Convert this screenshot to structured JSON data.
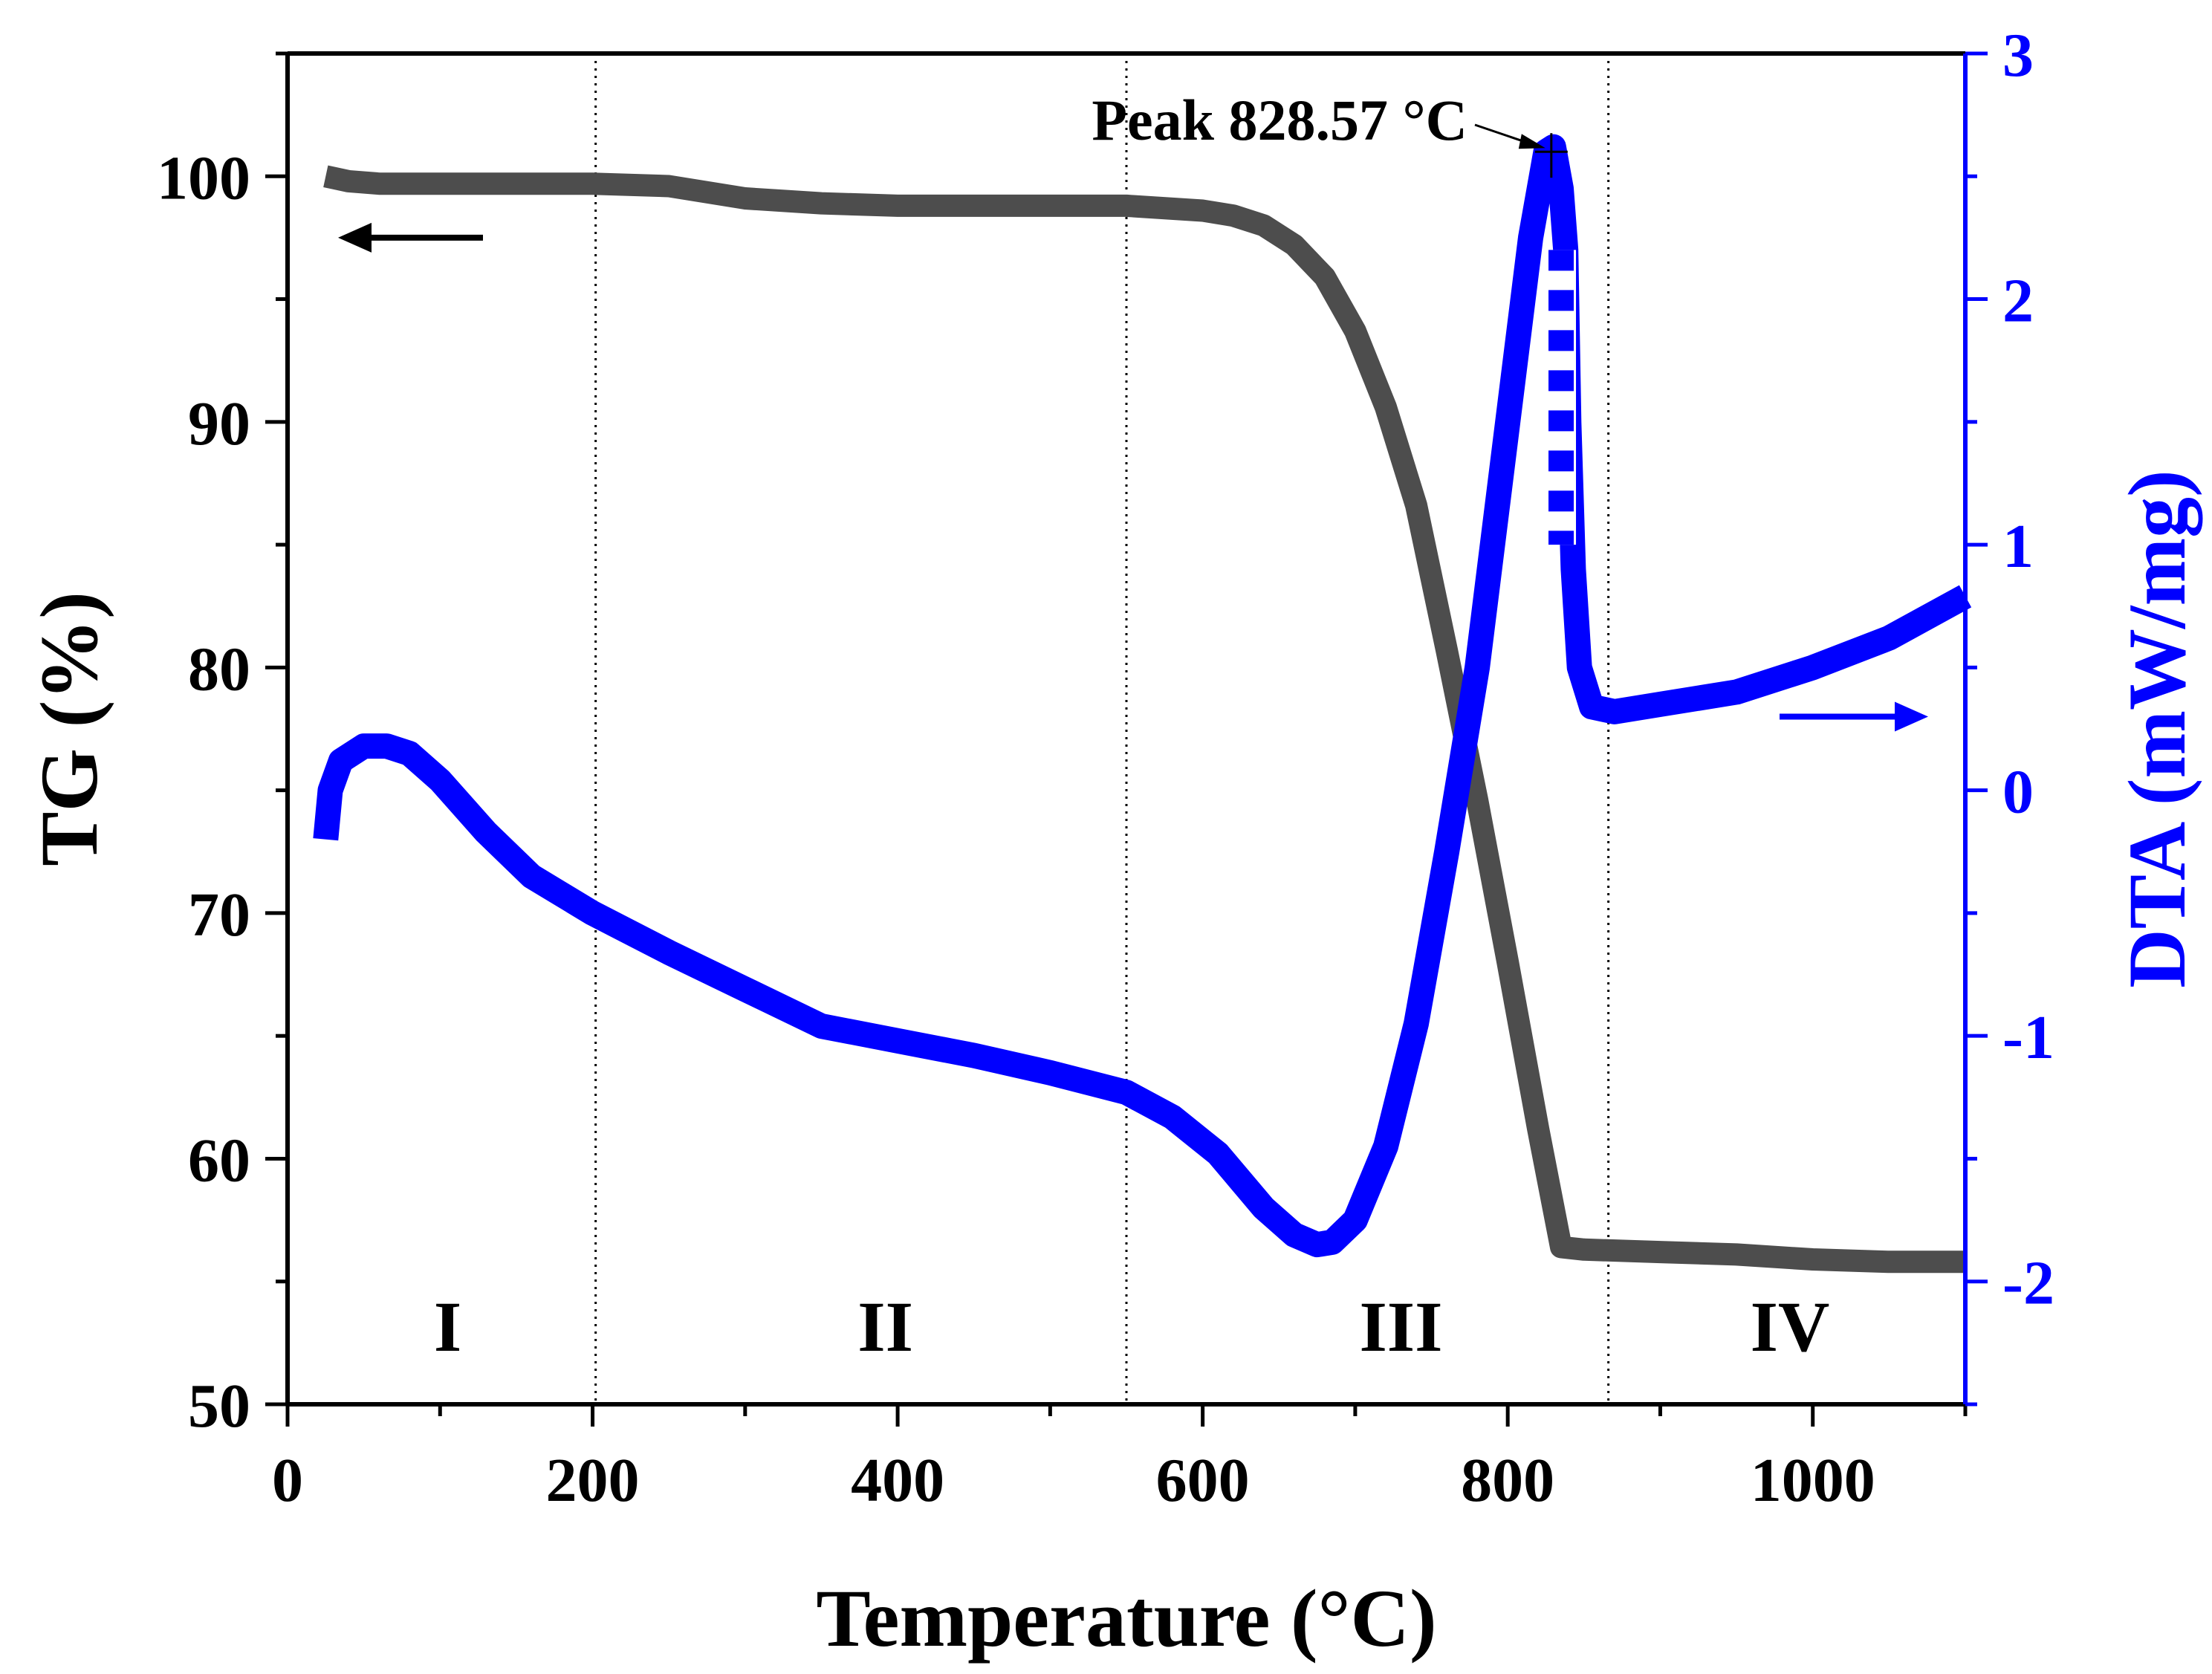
{
  "chart_data": {
    "type": "line",
    "title": "",
    "xlabel": "Temperature (°C)",
    "ylabel_left": "TG (%)",
    "ylabel_right": "DTA (mW/mg)",
    "xlim": [
      0,
      1100
    ],
    "ylim_left": [
      50,
      105
    ],
    "ylim_right": [
      -2.5,
      3
    ],
    "x_ticks": [
      0,
      200,
      400,
      600,
      800,
      1000
    ],
    "left_ticks": [
      50,
      60,
      70,
      80,
      90,
      100
    ],
    "right_ticks": [
      -2,
      -1,
      0,
      1,
      2,
      3
    ],
    "x_tick_labels": [
      "0",
      "200",
      "400",
      "600",
      "800",
      "1000"
    ],
    "left_tick_labels": [
      "50",
      "60",
      "70",
      "80",
      "90",
      "100"
    ],
    "right_tick_labels": [
      "-2",
      "-1",
      "0",
      "1",
      "2",
      "3"
    ],
    "colors": {
      "tg": "#4d4d4d",
      "dta": "#0000ff",
      "axis_left": "#000000",
      "axis_right": "#0000ff"
    },
    "region_boundaries": [
      202,
      550,
      866
    ],
    "regions": [
      {
        "label": "I",
        "x": 105
      },
      {
        "label": "II",
        "x": 392
      },
      {
        "label": "III",
        "x": 730
      },
      {
        "label": "IV",
        "x": 985
      }
    ],
    "annotation": {
      "text": "Peak 828.57 °C",
      "x": 828.57,
      "y": 2.6
    },
    "series": [
      {
        "name": "TG",
        "axis": "left",
        "x": [
          25,
          40,
          60,
          100,
          150,
          200,
          250,
          300,
          350,
          400,
          450,
          500,
          550,
          600,
          620,
          640,
          660,
          680,
          700,
          720,
          740,
          760,
          780,
          800,
          820,
          835,
          850,
          900,
          950,
          1000,
          1050,
          1100
        ],
        "y": [
          100.0,
          99.8,
          99.7,
          99.7,
          99.7,
          99.7,
          99.6,
          99.1,
          98.9,
          98.8,
          98.8,
          98.8,
          98.8,
          98.6,
          98.4,
          98.0,
          97.2,
          95.9,
          93.7,
          90.6,
          86.6,
          80.7,
          74.6,
          68.0,
          61.2,
          56.4,
          56.3,
          56.2,
          56.1,
          55.9,
          55.8,
          55.8
        ]
      },
      {
        "name": "DTA",
        "axis": "right",
        "x": [
          25,
          28,
          35,
          50,
          65,
          80,
          100,
          130,
          160,
          200,
          250,
          300,
          350,
          400,
          450,
          500,
          550,
          580,
          610,
          640,
          660,
          675,
          685,
          700,
          720,
          740,
          760,
          780,
          800,
          815,
          825,
          830,
          835,
          838,
          840,
          843,
          847,
          855,
          870,
          900,
          950,
          1000,
          1050,
          1100
        ],
        "y": [
          -0.2,
          0.0,
          0.12,
          0.18,
          0.18,
          0.15,
          0.04,
          -0.17,
          -0.35,
          -0.5,
          -0.66,
          -0.81,
          -0.96,
          -1.02,
          -1.08,
          -1.15,
          -1.23,
          -1.33,
          -1.48,
          -1.7,
          -1.81,
          -1.85,
          -1.84,
          -1.75,
          -1.45,
          -0.95,
          -0.25,
          0.5,
          1.5,
          2.25,
          2.6,
          2.62,
          2.45,
          2.2,
          1.5,
          0.9,
          0.5,
          0.34,
          0.32,
          0.35,
          0.4,
          0.5,
          0.62,
          0.79
        ]
      }
    ]
  }
}
